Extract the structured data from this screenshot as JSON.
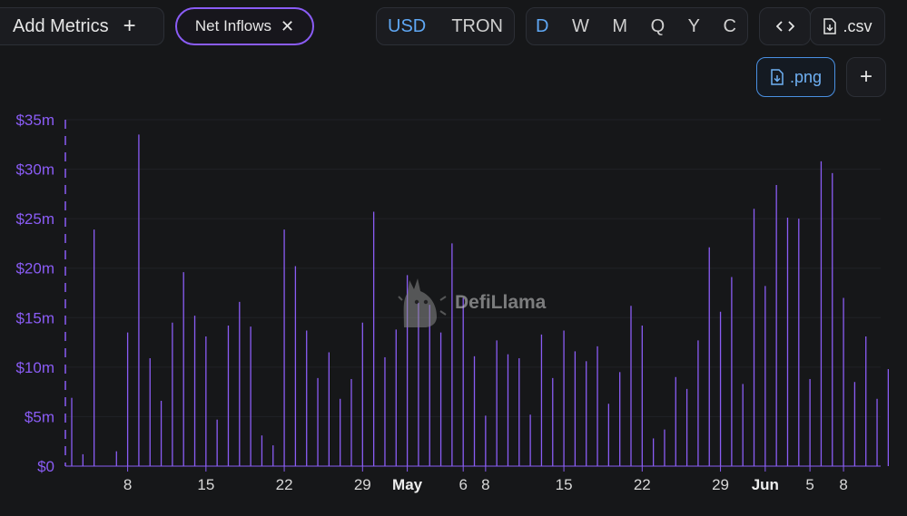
{
  "toolbar": {
    "add_metrics_label": "Add Metrics",
    "add_metrics_icon": "plus-icon",
    "active_metric_label": "Net Inflows",
    "active_metric_icon": "close-icon",
    "units": [
      "USD",
      "TRON"
    ],
    "active_unit": "USD",
    "periods": [
      "D",
      "W",
      "M",
      "Q",
      "Y",
      "C"
    ],
    "active_period": "D",
    "embed_icon": "code-icon",
    "csv_label": ".csv",
    "csv_icon": "download-file-icon",
    "png_label": ".png",
    "png_icon": "download-file-icon",
    "more_icon": "plus-icon"
  },
  "watermark": {
    "text": "DefiLlama",
    "icon": "llama-logo-icon"
  },
  "colors": {
    "accent": "#8a5cf5",
    "active_blue": "#5fa7f4",
    "background": "#161719"
  },
  "chart_data": {
    "type": "bar",
    "series_name": "Net Inflows",
    "ylim": [
      0,
      35000000
    ],
    "yticks": [
      "$0",
      "$5m",
      "$10m",
      "$15m",
      "$20m",
      "$25m",
      "$30m",
      "$35m"
    ],
    "xticks": [
      "8",
      "15",
      "22",
      "29",
      "May",
      "6",
      "8",
      "15",
      "22",
      "29",
      "Jun",
      "5",
      "8"
    ],
    "x": [
      "Apr 1",
      "Apr 2",
      "Apr 3",
      "Apr 4",
      "Apr 5",
      "Apr 6",
      "Apr 7",
      "Apr 8",
      "Apr 9",
      "Apr 10",
      "Apr 11",
      "Apr 12",
      "Apr 13",
      "Apr 14",
      "Apr 15",
      "Apr 16",
      "Apr 17",
      "Apr 18",
      "Apr 19",
      "Apr 20",
      "Apr 21",
      "Apr 22",
      "Apr 23",
      "Apr 24",
      "Apr 25",
      "Apr 26",
      "Apr 27",
      "Apr 28",
      "Apr 29",
      "Apr 30",
      "May 1",
      "May 2",
      "May 3",
      "May 4",
      "May 5",
      "May 6",
      "May 7",
      "May 8",
      "May 9",
      "May 10",
      "May 11",
      "May 12",
      "May 13",
      "May 14",
      "May 15",
      "May 16",
      "May 17",
      "May 18",
      "May 19",
      "May 20",
      "May 21",
      "May 22",
      "May 23",
      "May 24",
      "May 25",
      "May 26",
      "May 27",
      "May 28",
      "May 29",
      "May 30",
      "May 31",
      "Jun 1",
      "Jun 2",
      "Jun 3",
      "Jun 4",
      "Jun 5",
      "Jun 6",
      "Jun 7",
      "Jun 8",
      "Jun 9",
      "Jun 10",
      "Jun 11",
      "Jun 12",
      "Jun 13"
    ],
    "values": [
      6.9,
      1.2,
      23.9,
      0,
      1.5,
      13.5,
      33.5,
      10.9,
      6.6,
      14.5,
      19.6,
      15.2,
      13.1,
      4.7,
      14.2,
      16.6,
      14.1,
      3.1,
      2.1,
      23.9,
      20.2,
      13.7,
      8.9,
      11.5,
      6.8,
      8.8,
      14.5,
      25.7,
      11.0,
      13.8,
      19.3,
      16.5,
      16.3,
      13.5,
      22.5,
      17.0,
      11.1,
      5.1,
      12.7,
      11.3,
      10.9,
      5.2,
      13.3,
      8.9,
      13.7,
      11.6,
      10.6,
      12.1,
      6.3,
      9.5,
      16.2,
      14.2,
      2.8,
      3.7,
      9.0,
      7.8,
      12.7,
      22.1,
      15.6,
      19.1,
      8.3,
      26.0,
      18.2,
      28.4,
      25.1,
      25.0,
      8.8,
      30.8,
      29.6,
      17.0,
      8.5,
      13.1,
      6.8,
      9.8
    ],
    "unit": "millions USD",
    "grid": true,
    "legend": "none"
  }
}
